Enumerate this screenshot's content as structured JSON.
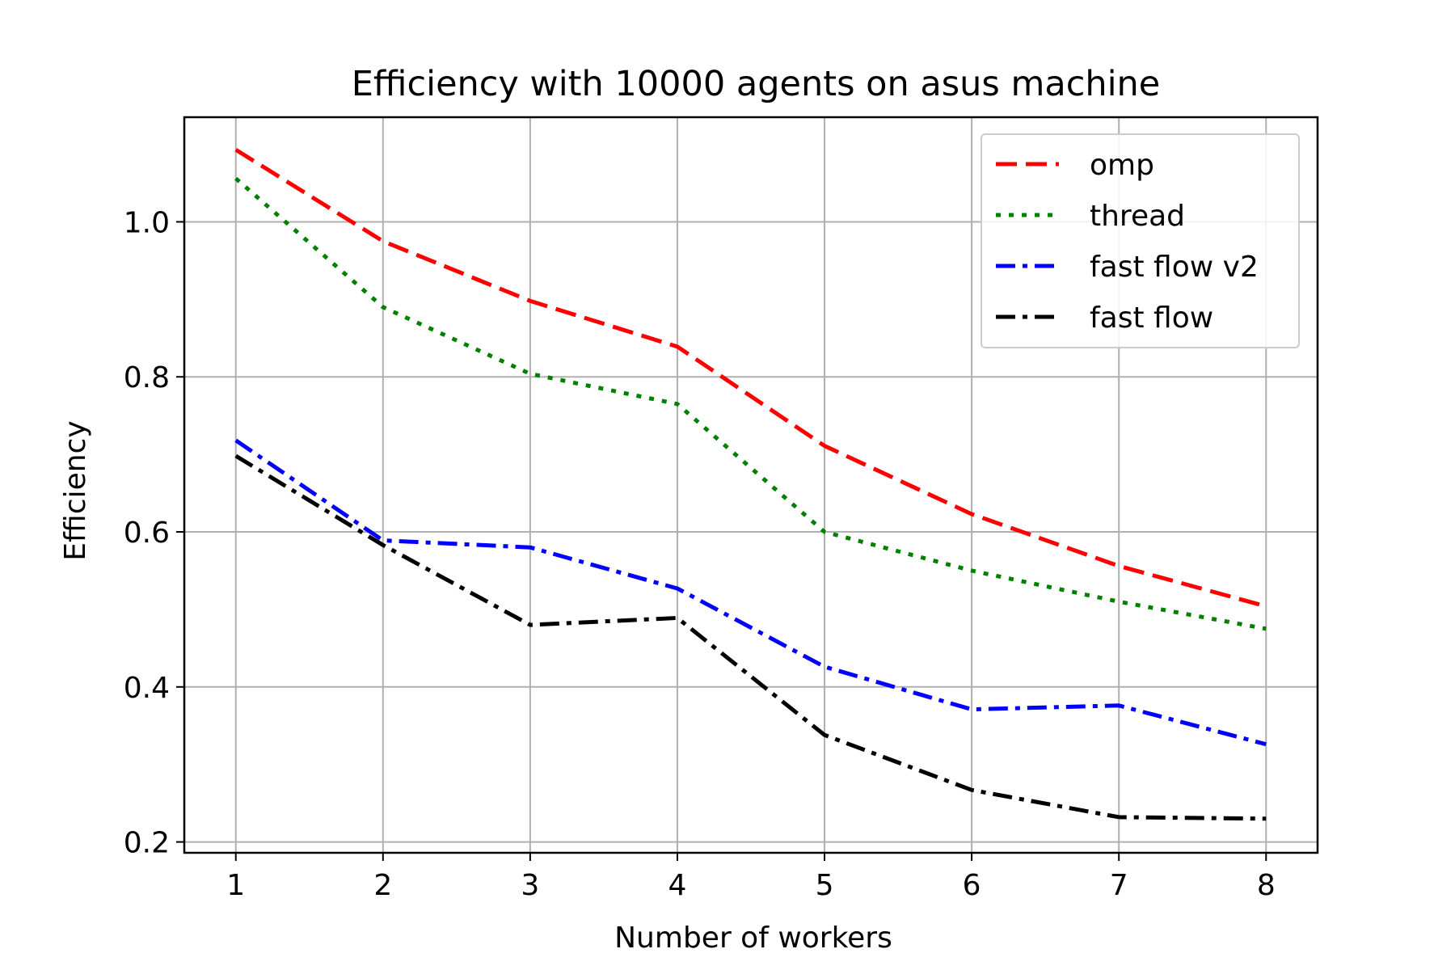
{
  "chart_data": {
    "type": "line",
    "title": "Efficiency with 10000 agents on asus machine",
    "xlabel": "Number of workers",
    "ylabel": "Efficiency",
    "x": [
      1,
      2,
      3,
      4,
      5,
      6,
      7,
      8
    ],
    "xlim": [
      0.65,
      8.35
    ],
    "ylim": [
      0.186,
      1.135
    ],
    "xticks": [
      1,
      2,
      3,
      4,
      5,
      6,
      7,
      8
    ],
    "yticks": [
      0.2,
      0.4,
      0.6,
      0.8,
      1.0
    ],
    "ytick_labels": [
      "0.2",
      "0.4",
      "0.6",
      "0.8",
      "1.0"
    ],
    "xtick_labels": [
      "1",
      "2",
      "3",
      "4",
      "5",
      "6",
      "7",
      "8"
    ],
    "grid": true,
    "legend_position": "top-right",
    "series": [
      {
        "name": "omp",
        "color": "#ff0000",
        "style": "dashed",
        "values": [
          1.093,
          0.975,
          0.898,
          0.839,
          0.711,
          0.623,
          0.556,
          0.504
        ]
      },
      {
        "name": "thread",
        "color": "#008000",
        "style": "dotted",
        "values": [
          1.056,
          0.89,
          0.804,
          0.765,
          0.6,
          0.55,
          0.51,
          0.475
        ]
      },
      {
        "name": "fast flow v2",
        "color": "#0000ff",
        "style": "dashdot",
        "values": [
          0.718,
          0.589,
          0.58,
          0.527,
          0.426,
          0.371,
          0.376,
          0.326
        ]
      },
      {
        "name": "fast flow",
        "color": "#000000",
        "style": "dashdot",
        "values": [
          0.698,
          0.583,
          0.48,
          0.489,
          0.338,
          0.267,
          0.232,
          0.23
        ]
      }
    ]
  }
}
